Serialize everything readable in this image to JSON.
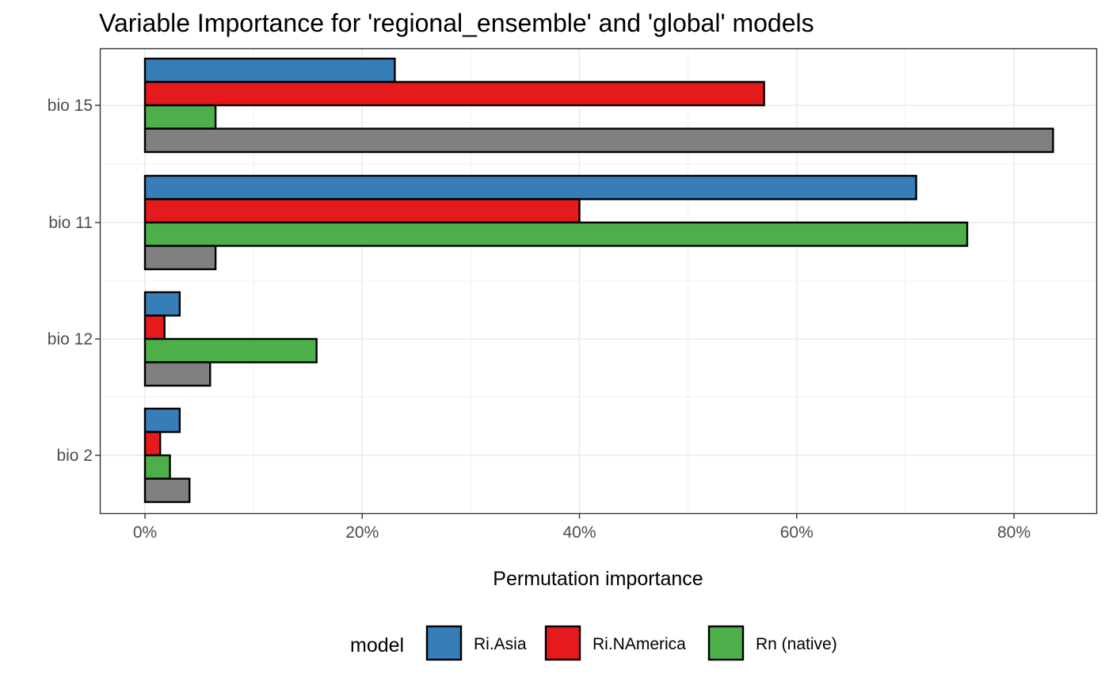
{
  "chart_data": {
    "type": "bar",
    "orientation": "horizontal",
    "title": "Variable Importance for 'regional_ensemble' and 'global' models",
    "xlabel": "Permutation importance",
    "ylabel": "",
    "xlim": [
      -0.04,
      0.88
    ],
    "x_ticks": [
      0,
      0.2,
      0.4,
      0.6,
      0.8
    ],
    "x_tick_labels": [
      "0%",
      "20%",
      "40%",
      "60%",
      "80%"
    ],
    "categories": [
      "bio 15",
      "bio 11",
      "bio 12",
      "bio 2"
    ],
    "series": [
      {
        "name": "Ri.Asia",
        "color": "#377EB8",
        "values": [
          0.23,
          0.71,
          0.032,
          0.032
        ]
      },
      {
        "name": "Ri.NAmerica",
        "color": "#E41A1C",
        "values": [
          0.57,
          0.4,
          0.018,
          0.014
        ]
      },
      {
        "name": "Rn (native)",
        "color": "#4DAF4A",
        "values": [
          0.065,
          0.757,
          0.158,
          0.023
        ]
      },
      {
        "color": "#808080",
        "values": [
          0.836,
          0.065,
          0.06,
          0.041
        ]
      }
    ],
    "grid": true,
    "legend": {
      "title": "model",
      "position": "bottom"
    }
  }
}
